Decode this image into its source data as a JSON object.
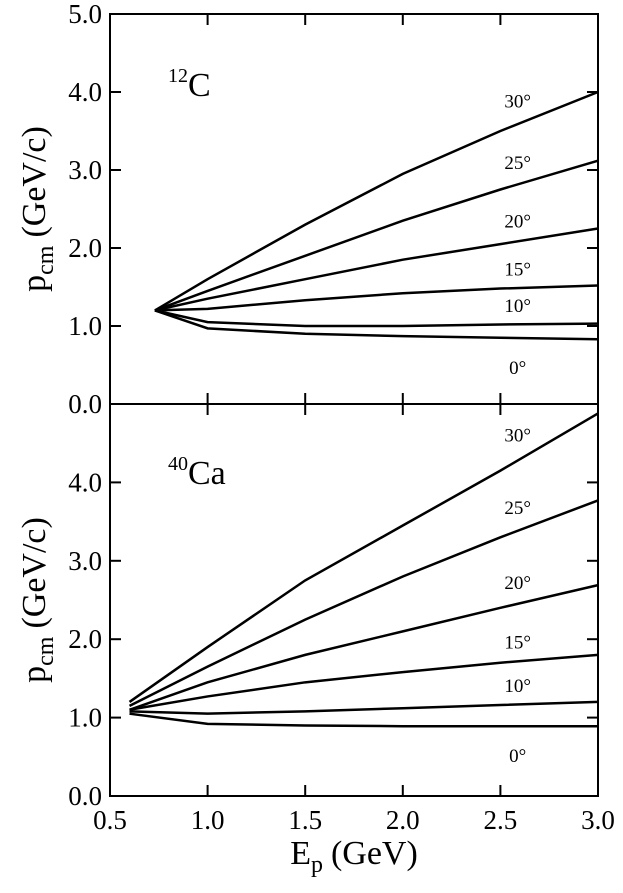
{
  "chart_data": [
    {
      "type": "line",
      "annotation_sup": "12",
      "annotation": "C",
      "ylabel": {
        "main": "p",
        "sub": "cm",
        "unit": "(GeV/c)"
      },
      "x": [
        0.73,
        1.0,
        1.5,
        2.0,
        2.5,
        3.0
      ],
      "series": [
        {
          "name": "30°",
          "color": "#000000",
          "values": [
            1.2,
            1.6,
            2.3,
            2.95,
            3.5,
            4.0
          ]
        },
        {
          "name": "25°",
          "color": "#000000",
          "values": [
            1.2,
            1.45,
            1.9,
            2.35,
            2.75,
            3.12
          ]
        },
        {
          "name": "20°",
          "color": "#000000",
          "values": [
            1.2,
            1.35,
            1.6,
            1.85,
            2.05,
            2.25
          ]
        },
        {
          "name": "15°",
          "color": "#000000",
          "values": [
            1.2,
            1.22,
            1.33,
            1.42,
            1.48,
            1.52
          ]
        },
        {
          "name": "10°",
          "color": "#000000",
          "values": [
            1.2,
            1.05,
            1.0,
            1.0,
            1.02,
            1.03
          ]
        },
        {
          "name": "0°",
          "color": "#000000",
          "values": [
            1.2,
            0.97,
            0.9,
            0.87,
            0.85,
            0.83
          ]
        }
      ],
      "xlim": [
        0.5,
        3.0
      ],
      "xticks": [
        0.5,
        1.0,
        1.5,
        2.0,
        2.5,
        3.0
      ],
      "ylim": [
        0,
        5
      ],
      "yticks": [
        {
          "value": 0,
          "label": "0.0"
        },
        {
          "value": 1,
          "label": "1.0"
        },
        {
          "value": 2,
          "label": "2.0"
        },
        {
          "value": 3,
          "label": "3.0"
        },
        {
          "value": 4,
          "label": "4.0"
        },
        {
          "value": 5,
          "label": "5.0"
        }
      ]
    },
    {
      "type": "line",
      "annotation_sup": "40",
      "annotation": "Ca",
      "ylabel": {
        "main": "p",
        "sub": "cm",
        "unit": "(GeV/c)"
      },
      "xlabel": {
        "main": "E",
        "sub": "p",
        "unit": "(GeV)"
      },
      "x": [
        0.6,
        1.0,
        1.5,
        2.0,
        2.5,
        3.0
      ],
      "series": [
        {
          "name": "30°",
          "color": "#000000",
          "values": [
            1.2,
            1.9,
            2.75,
            3.45,
            4.15,
            4.88
          ]
        },
        {
          "name": "25°",
          "color": "#000000",
          "values": [
            1.15,
            1.65,
            2.25,
            2.8,
            3.3,
            3.77
          ]
        },
        {
          "name": "20°",
          "color": "#000000",
          "values": [
            1.1,
            1.45,
            1.8,
            2.1,
            2.4,
            2.69
          ]
        },
        {
          "name": "15°",
          "color": "#000000",
          "values": [
            1.1,
            1.27,
            1.45,
            1.58,
            1.7,
            1.8
          ]
        },
        {
          "name": "10°",
          "color": "#000000",
          "values": [
            1.08,
            1.05,
            1.08,
            1.12,
            1.16,
            1.2
          ]
        },
        {
          "name": "0°",
          "color": "#000000",
          "values": [
            1.05,
            0.92,
            0.9,
            0.89,
            0.89,
            0.89
          ]
        }
      ],
      "xlim": [
        0.5,
        3.0
      ],
      "xticks": [
        0.5,
        {
          "value": 1,
          "label": "1.0"
        },
        1.5,
        {
          "value": 2,
          "label": "2.0"
        },
        2.5,
        {
          "value": 3,
          "label": "3.0"
        }
      ],
      "ylim": [
        0,
        5
      ],
      "yticks": [
        {
          "value": 0,
          "label": "0.0"
        },
        {
          "value": 1,
          "label": "1.0"
        },
        {
          "value": 2,
          "label": "2.0"
        },
        {
          "value": 3,
          "label": "3.0"
        },
        {
          "value": 4,
          "label": "4.0"
        }
      ]
    }
  ]
}
